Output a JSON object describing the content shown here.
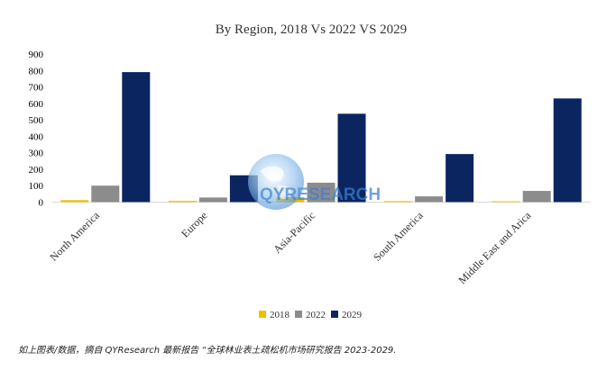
{
  "chart_data": {
    "type": "bar",
    "title": "By Region, 2018 Vs 2022 VS 2029",
    "categories": [
      "North America",
      "Europe",
      "Asia-Pacific",
      "South America",
      "Middle East and Arica"
    ],
    "series": [
      {
        "name": "2018",
        "color": "#f0c000",
        "values": [
          12,
          7,
          30,
          6,
          5
        ]
      },
      {
        "name": "2022",
        "color": "#8c8c8c",
        "values": [
          100,
          28,
          118,
          35,
          68
        ]
      },
      {
        "name": "2029",
        "color": "#0b2560",
        "values": [
          790,
          163,
          537,
          292,
          630
        ]
      }
    ],
    "ylim": [
      0,
      900
    ],
    "yticks": [
      0,
      100,
      200,
      300,
      400,
      500,
      600,
      700,
      800,
      900
    ],
    "xlabel": "",
    "ylabel": "",
    "grid": false,
    "legend_position": "bottom"
  },
  "watermark": {
    "text": "QYRESEARCH"
  },
  "source_note": "如上图表/数据，摘自 QYResearch 最新报告 “全球林业表土疏松机市场研究报告 2023-2029."
}
